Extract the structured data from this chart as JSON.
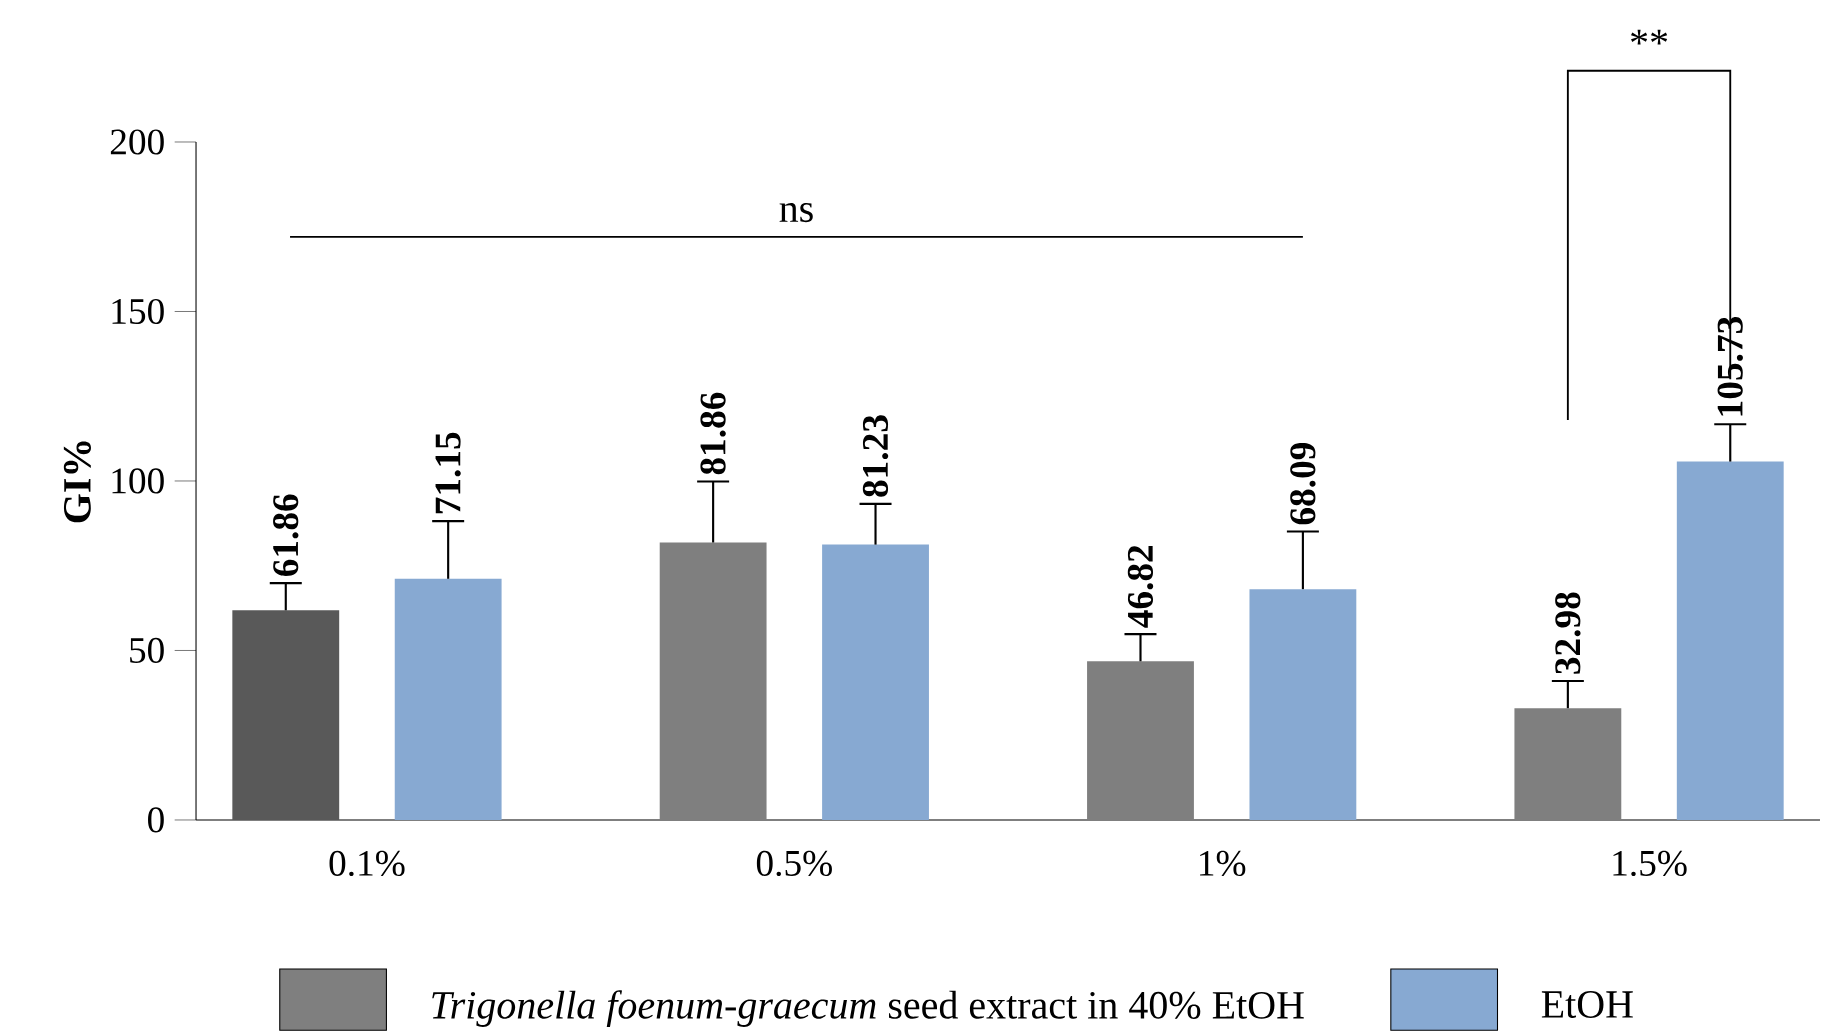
{
  "chart_data": {
    "type": "bar",
    "ylabel": "GI%",
    "categories": [
      "0.1%",
      "0.5%",
      "1%",
      "1.5%"
    ],
    "series": [
      {
        "name": "*Trigonella foenum-graecum* seed extract in 40% EtOH",
        "color": "#7f7f7f",
        "colors": [
          "#595959",
          "#7f7f7f",
          "#7f7f7f",
          "#7f7f7f"
        ],
        "values": [
          61.86,
          81.86,
          46.82,
          32.98
        ],
        "errors": [
          8,
          18,
          8,
          8
        ]
      },
      {
        "name": "EtOH",
        "color": "#87a9d2",
        "values": [
          71.15,
          81.23,
          68.09,
          105.73
        ],
        "errors": [
          17,
          12,
          17,
          11
        ]
      }
    ],
    "ylim": [
      0,
      200
    ],
    "yticks": [
      0,
      50,
      100,
      150,
      200
    ],
    "data_labels": true,
    "grid": false,
    "legend": "bottom",
    "annotations": [
      "ns",
      "**"
    ]
  }
}
